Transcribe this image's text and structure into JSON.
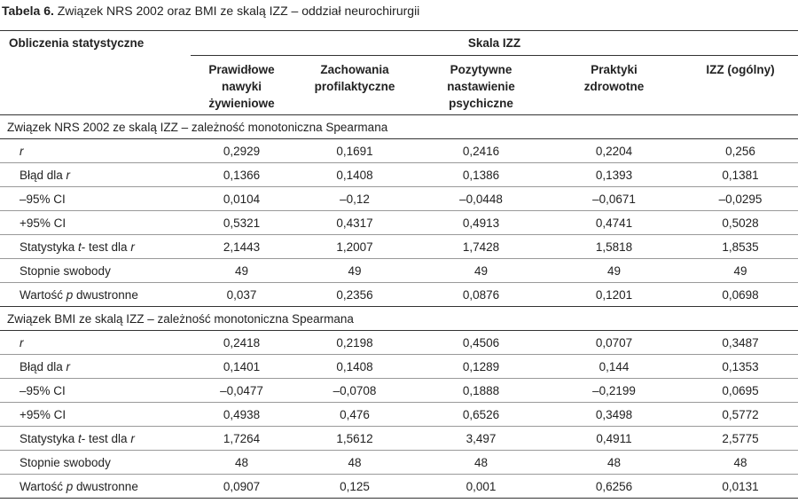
{
  "caption": {
    "label": "Tabela 6.",
    "text": "Związek NRS 2002 oraz BMI ze skalą IZZ – oddział neurochirurgii"
  },
  "header": {
    "row_header": "Obliczenia statystyczne",
    "group": "Skala IZZ",
    "columns": [
      [
        "Prawidłowe",
        "nawyki",
        "żywieniowe"
      ],
      [
        "Zachowania",
        "profilaktyczne"
      ],
      [
        "Pozytywne",
        "nastawienie",
        "psychiczne"
      ],
      [
        "Praktyki",
        "zdrowotne"
      ],
      [
        "IZZ (ogólny)"
      ]
    ]
  },
  "sections": [
    {
      "title": "Związek NRS 2002 ze skalą  IZZ – zależność monotoniczna Spearmana",
      "rows": [
        {
          "label": {
            "pre": "",
            "it": "r",
            "post": ""
          },
          "values": [
            "0,2929",
            "0,1691",
            "0,2416",
            "0,2204",
            "0,256"
          ]
        },
        {
          "label": {
            "pre": "Błąd dla ",
            "it": "r",
            "post": ""
          },
          "values": [
            "0,1366",
            "0,1408",
            "0,1386",
            "0,1393",
            "0,1381"
          ]
        },
        {
          "label": {
            "pre": "–95% CI",
            "it": "",
            "post": ""
          },
          "values": [
            "0,0104",
            "–0,12",
            "–0,0448",
            "–0,0671",
            "–0,0295"
          ]
        },
        {
          "label": {
            "pre": "+95% CI",
            "it": "",
            "post": ""
          },
          "values": [
            "0,5321",
            "0,4317",
            "0,4913",
            "0,4741",
            "0,5028"
          ]
        },
        {
          "label": {
            "pre": "Statystyka ",
            "it": "t",
            "post": "- test dla ",
            "it2": "r"
          },
          "values": [
            "2,1443",
            "1,2007",
            "1,7428",
            "1,5818",
            "1,8535"
          ]
        },
        {
          "label": {
            "pre": "Stopnie swobody",
            "it": "",
            "post": ""
          },
          "values": [
            "49",
            "49",
            "49",
            "49",
            "49"
          ]
        },
        {
          "label": {
            "pre": "Wartość ",
            "it": "p",
            "post": " dwustronne"
          },
          "values": [
            "0,037",
            "0,2356",
            "0,0876",
            "0,1201",
            "0,0698"
          ]
        }
      ]
    },
    {
      "title": "Związek BMI ze skalą IZZ – zależność monotoniczna Spearmana",
      "rows": [
        {
          "label": {
            "pre": "",
            "it": "r",
            "post": ""
          },
          "values": [
            "0,2418",
            "0,2198",
            "0,4506",
            "0,0707",
            "0,3487"
          ]
        },
        {
          "label": {
            "pre": "Błąd dla ",
            "it": "r",
            "post": ""
          },
          "values": [
            "0,1401",
            "0,1408",
            "0,1289",
            "0,144",
            "0,1353"
          ]
        },
        {
          "label": {
            "pre": "–95% CI",
            "it": "",
            "post": ""
          },
          "values": [
            "–0,0477",
            "–0,0708",
            "0,1888",
            "–0,2199",
            "0,0695"
          ]
        },
        {
          "label": {
            "pre": "+95% CI",
            "it": "",
            "post": ""
          },
          "values": [
            "0,4938",
            "0,476",
            "0,6526",
            "0,3498",
            "0,5772"
          ]
        },
        {
          "label": {
            "pre": "Statystyka ",
            "it": "t",
            "post": "- test dla ",
            "it2": "r"
          },
          "values": [
            "1,7264",
            "1,5612",
            "3,497",
            "0,4911",
            "2,5775"
          ]
        },
        {
          "label": {
            "pre": "Stopnie swobody",
            "it": "",
            "post": ""
          },
          "values": [
            "48",
            "48",
            "48",
            "48",
            "48"
          ]
        },
        {
          "label": {
            "pre": "Wartość ",
            "it": "p",
            "post": " dwustronne"
          },
          "values": [
            "0,0907",
            "0,125",
            "0,001",
            "0,6256",
            "0,0131"
          ]
        }
      ]
    }
  ]
}
